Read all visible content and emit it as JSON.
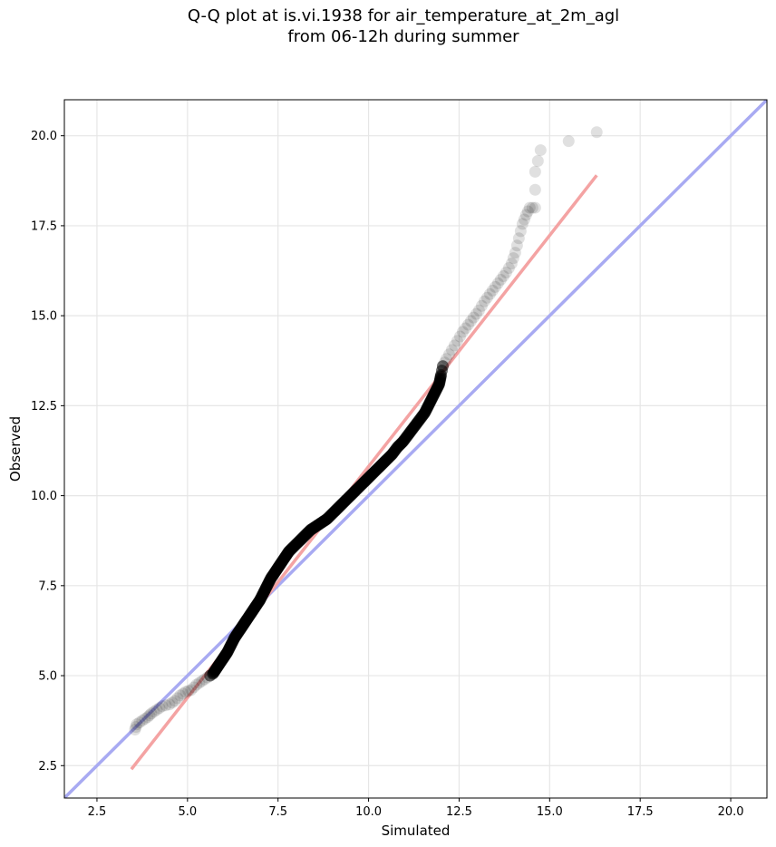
{
  "chart_data": {
    "type": "scatter",
    "title_line1": "Q-Q plot at is.vi.1938 for air_temperature_at_2m_agl",
    "title_line2": "from 06-12h during summer",
    "xlabel": "Simulated",
    "ylabel": "Observed",
    "xlim": [
      1.6,
      21.0
    ],
    "ylim": [
      1.6,
      21.0
    ],
    "x_ticks": [
      2.5,
      5.0,
      7.5,
      10.0,
      12.5,
      15.0,
      17.5,
      20.0
    ],
    "y_ticks": [
      2.5,
      5.0,
      7.5,
      10.0,
      12.5,
      15.0,
      17.5,
      20.0
    ],
    "x_tick_labels": [
      "2.5",
      "5.0",
      "7.5",
      "10.0",
      "12.5",
      "15.0",
      "17.5",
      "20.0"
    ],
    "y_tick_labels": [
      "2.5",
      "5.0",
      "7.5",
      "10.0",
      "12.5",
      "15.0",
      "17.5",
      "20.0"
    ],
    "grid": true,
    "points": [
      [
        3.55,
        3.5
      ],
      [
        3.6,
        3.65
      ],
      [
        3.75,
        3.75
      ],
      [
        3.9,
        3.85
      ],
      [
        4.0,
        3.95
      ],
      [
        4.15,
        4.05
      ],
      [
        4.3,
        4.15
      ],
      [
        4.5,
        4.2
      ],
      [
        4.65,
        4.3
      ],
      [
        4.8,
        4.45
      ],
      [
        4.95,
        4.55
      ],
      [
        5.1,
        4.6
      ],
      [
        5.25,
        4.75
      ],
      [
        5.4,
        4.85
      ],
      [
        5.55,
        4.95
      ],
      [
        5.7,
        5.05
      ],
      [
        5.8,
        5.2
      ],
      [
        5.9,
        5.35
      ],
      [
        6.0,
        5.5
      ],
      [
        6.1,
        5.65
      ],
      [
        6.2,
        5.85
      ],
      [
        6.3,
        6.05
      ],
      [
        6.4,
        6.2
      ],
      [
        6.5,
        6.35
      ],
      [
        6.6,
        6.5
      ],
      [
        6.7,
        6.65
      ],
      [
        6.8,
        6.8
      ],
      [
        6.9,
        6.95
      ],
      [
        7.0,
        7.1
      ],
      [
        7.1,
        7.3
      ],
      [
        7.2,
        7.5
      ],
      [
        7.3,
        7.7
      ],
      [
        7.4,
        7.85
      ],
      [
        7.5,
        8.0
      ],
      [
        7.6,
        8.15
      ],
      [
        7.7,
        8.3
      ],
      [
        7.8,
        8.45
      ],
      [
        7.95,
        8.6
      ],
      [
        8.1,
        8.75
      ],
      [
        8.25,
        8.9
      ],
      [
        8.4,
        9.05
      ],
      [
        8.55,
        9.15
      ],
      [
        8.7,
        9.25
      ],
      [
        8.85,
        9.35
      ],
      [
        9.0,
        9.5
      ],
      [
        9.15,
        9.65
      ],
      [
        9.3,
        9.8
      ],
      [
        9.45,
        9.95
      ],
      [
        9.6,
        10.1
      ],
      [
        9.75,
        10.25
      ],
      [
        9.9,
        10.4
      ],
      [
        10.05,
        10.55
      ],
      [
        10.2,
        10.7
      ],
      [
        10.35,
        10.85
      ],
      [
        10.5,
        11.0
      ],
      [
        10.65,
        11.15
      ],
      [
        10.8,
        11.35
      ],
      [
        10.95,
        11.5
      ],
      [
        11.1,
        11.7
      ],
      [
        11.25,
        11.9
      ],
      [
        11.4,
        12.1
      ],
      [
        11.55,
        12.3
      ],
      [
        11.65,
        12.5
      ],
      [
        11.75,
        12.7
      ],
      [
        11.85,
        12.9
      ],
      [
        11.95,
        13.1
      ],
      [
        12.0,
        13.35
      ],
      [
        12.05,
        13.6
      ],
      [
        12.15,
        13.8
      ],
      [
        12.3,
        14.05
      ],
      [
        12.45,
        14.3
      ],
      [
        12.6,
        14.55
      ],
      [
        12.75,
        14.75
      ],
      [
        12.9,
        14.95
      ],
      [
        13.05,
        15.15
      ],
      [
        13.2,
        15.4
      ],
      [
        13.35,
        15.6
      ],
      [
        13.5,
        15.8
      ],
      [
        13.65,
        16.0
      ],
      [
        13.8,
        16.2
      ],
      [
        13.95,
        16.45
      ],
      [
        14.05,
        16.75
      ],
      [
        14.15,
        17.15
      ],
      [
        14.25,
        17.55
      ],
      [
        14.35,
        17.8
      ],
      [
        14.45,
        18.0
      ],
      [
        14.6,
        18.0
      ],
      [
        14.6,
        19.0
      ],
      [
        14.75,
        19.6
      ],
      [
        16.3,
        20.1
      ]
    ],
    "fit_line": {
      "x": [
        3.45,
        16.3
      ],
      "y": [
        2.4,
        18.9
      ],
      "color": "#f4a3a3"
    },
    "identity_line": {
      "x": [
        1.6,
        21.0
      ],
      "y": [
        1.6,
        21.0
      ],
      "color": "#a8aaf2"
    },
    "marker_color": "#000000"
  }
}
